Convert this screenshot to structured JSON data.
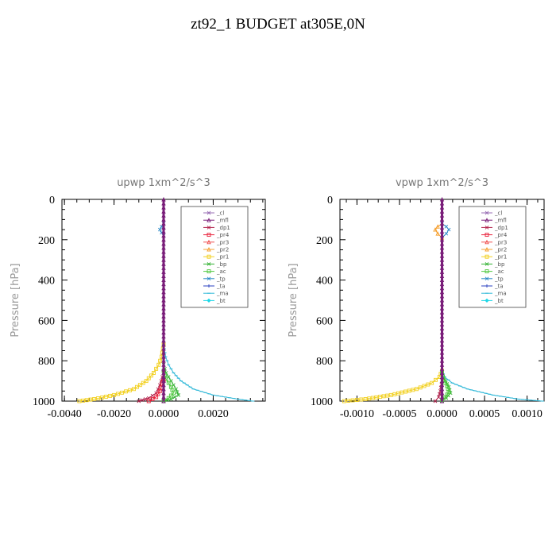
{
  "title": "zt92_1  BUDGET at305E,0N",
  "legend": [
    {
      "name": "_cl",
      "color": "#9a6fb5",
      "marker": "x"
    },
    {
      "name": "_mfl",
      "color": "#7a1f7a",
      "marker": "tri"
    },
    {
      "name": "_dp1",
      "color": "#b0204a",
      "marker": "x"
    },
    {
      "name": "_pr4",
      "color": "#e8203a",
      "marker": "sq"
    },
    {
      "name": "_pr3",
      "color": "#f05050",
      "marker": "tri"
    },
    {
      "name": "_pr2",
      "color": "#f5a030",
      "marker": "tri"
    },
    {
      "name": "_pr1",
      "color": "#f2d020",
      "marker": "sq"
    },
    {
      "name": "_bp",
      "color": "#30b030",
      "marker": "x"
    },
    {
      "name": "_ac",
      "color": "#50c840",
      "marker": "sq"
    },
    {
      "name": "_tp",
      "color": "#2c8ac8",
      "marker": "x"
    },
    {
      "name": "_ta",
      "color": "#2a40c0",
      "marker": "plus"
    },
    {
      "name": "_ma",
      "color": "#30b8d8",
      "marker": "dash"
    },
    {
      "name": "_bt",
      "color": "#20d8e8",
      "marker": "dia"
    }
  ],
  "chart_data": [
    {
      "type": "line",
      "title": "upwp   1xm^2/s^3",
      "ylabel": "Pressure  [hPa]",
      "xlim": [
        -0.0041,
        0.0041
      ],
      "ylim": [
        1000,
        0
      ],
      "xticks": [
        -0.004,
        -0.002,
        0.0,
        0.002
      ],
      "xticklabels": [
        "-0.0040",
        "-0.0020",
        "0.0000",
        "0.0020"
      ],
      "yticks": [
        0,
        200,
        400,
        600,
        800,
        1000
      ],
      "yticklabels": [
        "0",
        "200",
        "400",
        "600",
        "800",
        "1000"
      ],
      "grid": false,
      "legend_position": "top-right",
      "series": [
        {
          "name": "_pr1",
          "x": [
            -0.0034,
            -0.0028,
            -0.002,
            -0.0012,
            -0.0007,
            -0.0004,
            -0.0002,
            -8e-05,
            0
          ],
          "y": [
            1000,
            990,
            970,
            940,
            900,
            860,
            820,
            780,
            720
          ]
        },
        {
          "name": "_ma",
          "x": [
            0.0036,
            0.003,
            0.002,
            0.0012,
            0.0007,
            0.0004,
            0.0002,
            8e-05,
            0
          ],
          "y": [
            1000,
            990,
            970,
            940,
            900,
            860,
            820,
            780,
            720
          ]
        },
        {
          "name": "_bp",
          "x": [
            0.0,
            0.0003,
            0.0006,
            0.0005,
            0.0003,
            0.0001,
            0
          ],
          "y": [
            1000,
            990,
            970,
            940,
            900,
            860,
            820
          ]
        },
        {
          "name": "_ac",
          "x": [
            0.0,
            0.0002,
            0.0004,
            0.0003,
            0.0001,
            0
          ],
          "y": [
            1000,
            985,
            960,
            930,
            890,
            850
          ]
        },
        {
          "name": "_dp1",
          "x": [
            -0.001,
            -0.0006,
            -0.0003,
            -0.00015,
            0
          ],
          "y": [
            1000,
            985,
            960,
            920,
            860
          ]
        },
        {
          "name": "_pr4",
          "x": [
            -0.0006,
            -0.0003,
            -0.00015,
            0
          ],
          "y": [
            1000,
            980,
            950,
            900
          ]
        },
        {
          "name": "_tp",
          "x": [
            0,
            -8e-05,
            -0.00015,
            -8e-05,
            0
          ],
          "y": [
            120,
            135,
            150,
            165,
            180
          ]
        },
        {
          "name": "_mfl",
          "x": [
            0,
            0,
            0,
            0,
            0,
            0,
            0,
            0,
            0,
            0,
            0
          ],
          "y": [
            0,
            100,
            200,
            300,
            400,
            500,
            600,
            700,
            800,
            900,
            1000
          ]
        }
      ]
    },
    {
      "type": "line",
      "title": "vpwp   1xm^2/s^3",
      "ylabel": "Pressure  [hPa]",
      "xlim": [
        -0.0012,
        0.0012
      ],
      "ylim": [
        1000,
        0
      ],
      "xticks": [
        -0.001,
        -0.0005,
        0.0,
        0.0005,
        0.001
      ],
      "xticklabels": [
        "-0.0010",
        "-0.0005",
        "0.0000",
        "0.0005",
        "0.0010"
      ],
      "yticks": [
        0,
        200,
        400,
        600,
        800,
        1000
      ],
      "yticklabels": [
        "0",
        "200",
        "400",
        "600",
        "800",
        "1000"
      ],
      "grid": false,
      "legend_position": "top-right",
      "series": [
        {
          "name": "_pr1",
          "x": [
            -0.00115,
            -0.0009,
            -0.0006,
            -0.0003,
            -0.00012,
            -3e-05,
            0
          ],
          "y": [
            1000,
            990,
            970,
            940,
            910,
            880,
            850
          ]
        },
        {
          "name": "_ma",
          "x": [
            0.00118,
            0.0009,
            0.0006,
            0.0003,
            0.00012,
            3e-05,
            0
          ],
          "y": [
            1000,
            990,
            970,
            940,
            910,
            880,
            850
          ]
        },
        {
          "name": "_bp",
          "x": [
            0.0,
            5e-05,
            0.0001,
            8e-05,
            4e-05,
            0
          ],
          "y": [
            1000,
            985,
            960,
            930,
            900,
            870
          ]
        },
        {
          "name": "_ac",
          "x": [
            0.0,
            4e-05,
            8e-05,
            6e-05,
            2e-05,
            0
          ],
          "y": [
            1000,
            980,
            955,
            925,
            895,
            860
          ]
        },
        {
          "name": "_dp1",
          "x": [
            -8e-05,
            -4e-05,
            -2e-05,
            0
          ],
          "y": [
            1000,
            980,
            950,
            900
          ]
        },
        {
          "name": "_tp",
          "x": [
            0,
            5e-05,
            8e-05,
            5e-05,
            0
          ],
          "y": [
            120,
            135,
            150,
            170,
            190
          ]
        },
        {
          "name": "_pr2",
          "x": [
            0,
            -5e-05,
            -8e-05,
            -5e-05,
            0
          ],
          "y": [
            120,
            135,
            150,
            170,
            190
          ]
        },
        {
          "name": "_mfl",
          "x": [
            0,
            0,
            0,
            0,
            0,
            0,
            0,
            0,
            0,
            0,
            0
          ],
          "y": [
            0,
            100,
            200,
            300,
            400,
            500,
            600,
            700,
            800,
            900,
            1000
          ]
        }
      ]
    }
  ]
}
